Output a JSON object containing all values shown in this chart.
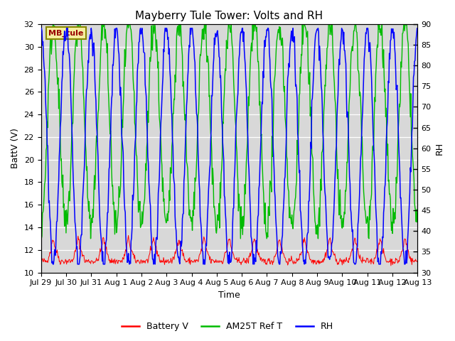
{
  "title": "Mayberry Tule Tower: Volts and RH",
  "xlabel": "Time",
  "ylabel_left": "BattV (V)",
  "ylabel_right": "RH",
  "ylim_left": [
    10,
    32
  ],
  "ylim_right": [
    30,
    90
  ],
  "yticks_left": [
    10,
    12,
    14,
    16,
    18,
    20,
    22,
    24,
    26,
    28,
    30,
    32
  ],
  "yticks_right": [
    30,
    35,
    40,
    45,
    50,
    55,
    60,
    65,
    70,
    75,
    80,
    85,
    90
  ],
  "xtick_labels": [
    "Jul 29",
    "Jul 30",
    "Jul 31",
    "Aug 1",
    "Aug 2",
    "Aug 3",
    "Aug 4",
    "Aug 5",
    "Aug 6",
    "Aug 7",
    "Aug 8",
    "Aug 9",
    "Aug 10",
    "Aug 11",
    "Aug 12",
    "Aug 13"
  ],
  "color_battery": "#ff0000",
  "color_am25t": "#00bb00",
  "color_rh": "#0000ff",
  "color_plot_bg": "#d8d8d8",
  "annotation_text": "MB_tule",
  "legend_labels": [
    "Battery V",
    "AM25T Ref T",
    "RH"
  ],
  "n_days": 15,
  "battery_base": 11.0,
  "am25t_min": 14.0,
  "am25t_max": 32.0,
  "rh_min": 32.0,
  "rh_max": 89.0
}
